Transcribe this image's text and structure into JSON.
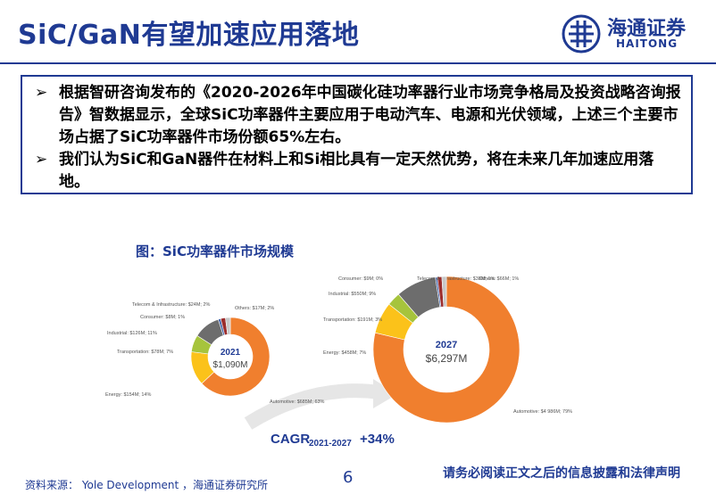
{
  "header": {
    "title": "SiC/GaN有望加速应用落地",
    "logo_zh": "海通证券",
    "logo_en": "HAITONG"
  },
  "summary": {
    "bullets": [
      {
        "mark": "➢",
        "text": "根据智研咨询发布的《2020-2026年中国碳化硅功率器行业市场竞争格局及投资战略咨询报告》智数据显示，全球SiC功率器件主要应用于电动汽车、电源和光伏领域，上述三个主要市场占据了SiC功率器件市场份额65%左右。"
      },
      {
        "mark": "➢",
        "text": "我们认为SiC和GaN器件在材料上和Si相比具有一定天然优势，将在未来几年加速应用落地。"
      }
    ]
  },
  "figure": {
    "title": "图：SiC功率器件市场规模"
  },
  "chart_data": [
    {
      "type": "pie",
      "title": "2021",
      "total_label": "$1,090M",
      "segments": [
        {
          "name": "Automotive",
          "label": "Automotive: $685M; 63%",
          "value": 63,
          "color": "#f07f2e"
        },
        {
          "name": "Energy",
          "label": "Energy: $154M; 14%",
          "value": 14,
          "color": "#fbc21a"
        },
        {
          "name": "Transportation",
          "label": "Transportation: $78M; 7%",
          "value": 7,
          "color": "#a6c43c"
        },
        {
          "name": "Industrial",
          "label": "Industrial: $126M; 11%",
          "value": 11,
          "color": "#6d6d6d"
        },
        {
          "name": "Consumer",
          "label": "Consumer: $8M; 1%",
          "value": 1,
          "color": "#3a5fa8"
        },
        {
          "name": "Telecom & Infrastructure",
          "label": "Telecom & Infrastructure: $24M; 2%",
          "value": 2,
          "color": "#9b2d2d"
        },
        {
          "name": "Others",
          "label": "Others: $17M; 2%",
          "value": 2,
          "color": "#c8c8c8"
        }
      ]
    },
    {
      "type": "pie",
      "title": "2027",
      "total_label": "$6,297M",
      "segments": [
        {
          "name": "Automotive",
          "label": "Automotive: $4 986M; 79%",
          "value": 79,
          "color": "#f07f2e"
        },
        {
          "name": "Energy",
          "label": "Energy: $458M; 7%",
          "value": 7,
          "color": "#fbc21a"
        },
        {
          "name": "Transportation",
          "label": "Transportation: $191M; 3%",
          "value": 3,
          "color": "#a6c43c"
        },
        {
          "name": "Industrial",
          "label": "Industrial: $550M; 9%",
          "value": 9,
          "color": "#6d6d6d"
        },
        {
          "name": "Consumer",
          "label": "Consumer: $9M; 0%",
          "value": 0,
          "color": "#3a5fa8"
        },
        {
          "name": "Telecom & Infrastructure",
          "label": "Telecom & Infrastructure: $38M; 1%",
          "value": 1,
          "color": "#9b2d2d"
        },
        {
          "name": "Others",
          "label": "Others: $66M; 1%",
          "value": 1,
          "color": "#c8c8c8"
        }
      ]
    }
  ],
  "cagr": {
    "label": "CAGR",
    "period": "2021-2027",
    "value": "+34%"
  },
  "footer": {
    "source": "资料来源： Yole Development ，海通证券研究所",
    "page": "6",
    "disclaimer": "请务必阅读正文之后的信息披露和法律声明"
  }
}
